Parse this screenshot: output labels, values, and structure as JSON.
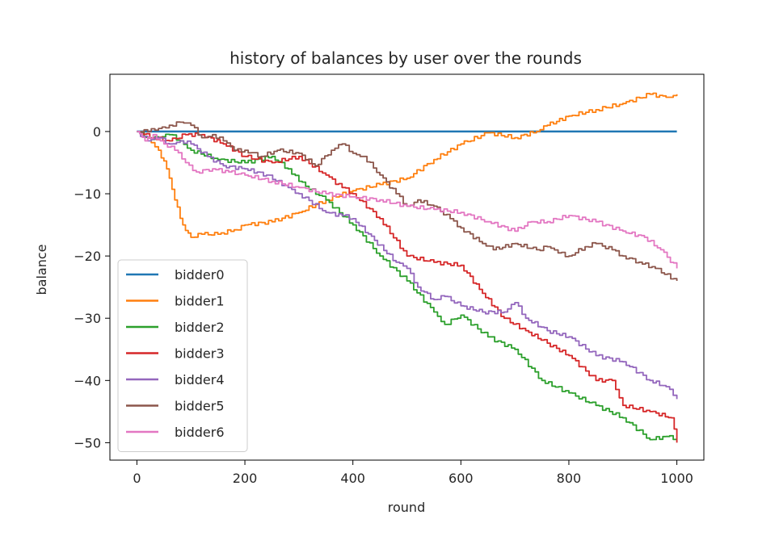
{
  "chart_data": {
    "type": "line",
    "title": "history of balances by user over the rounds",
    "xlabel": "round",
    "ylabel": "balance",
    "xlim": [
      -50,
      1050
    ],
    "ylim": [
      -52.8,
      9.2
    ],
    "xticks": [
      0,
      200,
      400,
      600,
      800,
      1000
    ],
    "yticks": [
      0,
      -10,
      -20,
      -30,
      -40,
      -50
    ],
    "xtick_labels": [
      "0",
      "200",
      "400",
      "600",
      "800",
      "1000"
    ],
    "ytick_labels": [
      "0",
      "−10",
      "−20",
      "−30",
      "−40",
      "−50"
    ],
    "grid": false,
    "legend_position": "lower-left",
    "series": [
      {
        "name": "bidder0",
        "color": "#1f77b4",
        "x": [
          0,
          1000
        ],
        "y": [
          0,
          0
        ]
      },
      {
        "name": "bidder1",
        "color": "#ff7f0e",
        "x": [
          0,
          20,
          40,
          55,
          70,
          85,
          100,
          120,
          150,
          180,
          200,
          250,
          300,
          350,
          400,
          450,
          500,
          550,
          600,
          650,
          700,
          740,
          760,
          800,
          850,
          900,
          950,
          980,
          1000
        ],
        "y": [
          0,
          -1,
          -3,
          -6,
          -11,
          -15,
          -17,
          -16.5,
          -16.5,
          -15.8,
          -15,
          -14.5,
          -13,
          -11,
          -9.5,
          -8.5,
          -7.5,
          -4.5,
          -2,
          -0.2,
          -1,
          0,
          1,
          2.5,
          3.5,
          4.5,
          6,
          5.5,
          6
        ]
      },
      {
        "name": "bidder2",
        "color": "#2ca02c",
        "x": [
          0,
          20,
          40,
          60,
          80,
          100,
          150,
          200,
          250,
          280,
          300,
          350,
          400,
          450,
          500,
          550,
          570,
          600,
          650,
          700,
          750,
          800,
          850,
          900,
          950,
          980,
          1000
        ],
        "y": [
          0,
          -1,
          -1,
          -0.5,
          -1.5,
          -3,
          -4.5,
          -5,
          -4,
          -6,
          -8,
          -11,
          -15,
          -20,
          -24,
          -29,
          -31,
          -29.5,
          -33,
          -35,
          -40,
          -42,
          -44,
          -46,
          -49.5,
          -49,
          -49.5
        ]
      },
      {
        "name": "bidder3",
        "color": "#d62728",
        "x": [
          0,
          30,
          60,
          90,
          120,
          160,
          200,
          250,
          300,
          350,
          380,
          400,
          450,
          500,
          550,
          600,
          640,
          680,
          720,
          760,
          800,
          850,
          880,
          900,
          950,
          990,
          1000
        ],
        "y": [
          0,
          -1,
          -1.5,
          -0.5,
          -0.5,
          -2,
          -4,
          -5,
          -4,
          -7,
          -9,
          -10,
          -14,
          -20,
          -21,
          -21.5,
          -26,
          -30,
          -32,
          -34,
          -36,
          -40,
          -40,
          -44,
          -45,
          -46,
          -50
        ]
      },
      {
        "name": "bidder4",
        "color": "#9467bd",
        "x": [
          0,
          20,
          40,
          60,
          80,
          100,
          130,
          160,
          200,
          240,
          280,
          300,
          350,
          380,
          400,
          440,
          480,
          500,
          520,
          550,
          570,
          600,
          640,
          680,
          700,
          720,
          760,
          800,
          850,
          900,
          950,
          980,
          1000
        ],
        "y": [
          0,
          -1.5,
          -1,
          -2,
          -1.5,
          -2,
          -4,
          -5.5,
          -6,
          -7,
          -9,
          -10,
          -13,
          -13.5,
          -14,
          -17.5,
          -21,
          -22,
          -25,
          -27,
          -26.5,
          -28,
          -29,
          -29,
          -27.5,
          -30,
          -32,
          -33,
          -36,
          -37,
          -40,
          -41,
          -43
        ]
      },
      {
        "name": "bidder5",
        "color": "#8c564b",
        "x": [
          0,
          20,
          40,
          60,
          80,
          100,
          120,
          140,
          160,
          180,
          200,
          230,
          260,
          300,
          330,
          360,
          380,
          400,
          420,
          450,
          480,
          500,
          520,
          550,
          580,
          600,
          640,
          660,
          700,
          740,
          760,
          780,
          800,
          830,
          850,
          880,
          900,
          930,
          960,
          1000
        ],
        "y": [
          0,
          0,
          0.5,
          1,
          1.5,
          1,
          -1,
          -0.5,
          -1.5,
          -3,
          -3,
          -4,
          -3,
          -3.5,
          -5.5,
          -3,
          -2,
          -3.5,
          -4,
          -7,
          -10,
          -12,
          -11,
          -12,
          -14,
          -15.5,
          -18,
          -19,
          -18,
          -19,
          -18.5,
          -19.5,
          -20,
          -18.5,
          -18,
          -19,
          -20,
          -21,
          -22,
          -24
        ]
      },
      {
        "name": "bidder6",
        "color": "#e377c2",
        "x": [
          0,
          15,
          30,
          50,
          70,
          90,
          110,
          140,
          170,
          200,
          250,
          300,
          350,
          400,
          450,
          500,
          550,
          600,
          650,
          700,
          730,
          760,
          800,
          850,
          900,
          940,
          970,
          1000
        ],
        "y": [
          0,
          -1.5,
          -0.5,
          -2,
          -3,
          -5,
          -6.5,
          -6,
          -6.5,
          -7,
          -8,
          -9,
          -10,
          -10.5,
          -11,
          -12,
          -12.5,
          -13,
          -14.5,
          -16,
          -14.5,
          -14.5,
          -13.5,
          -14.5,
          -16,
          -17,
          -19,
          -22
        ]
      }
    ]
  }
}
